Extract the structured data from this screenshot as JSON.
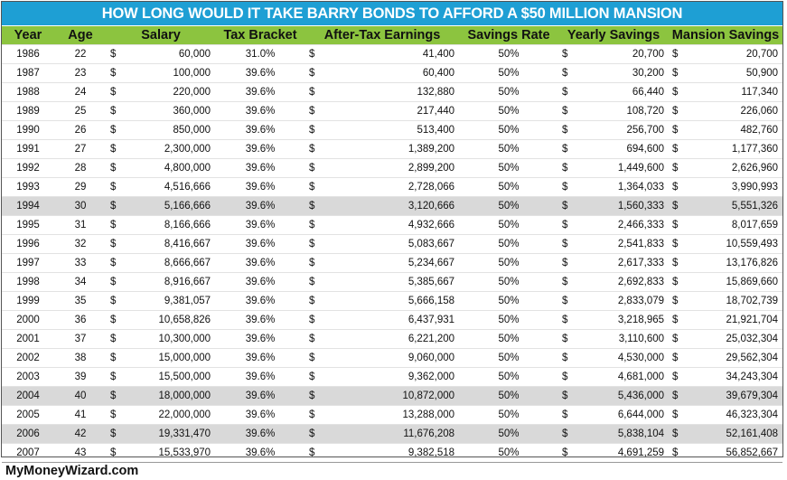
{
  "title": "HOW LONG WOULD IT TAKE BARRY BONDS TO AFFORD A $50 MILLION MANSION",
  "colors": {
    "title_bg": "#1e9fd4",
    "header_bg": "#8cc43f",
    "highlight_row": "#d9d9d9"
  },
  "headers": {
    "year": "Year",
    "age": "Age",
    "salary": "Salary",
    "tax_bracket": "Tax Bracket",
    "after_tax": "After-Tax Earnings",
    "savings_rate": "Savings Rate",
    "yearly_savings": "Yearly Savings",
    "mansion_savings": "Mansion Savings"
  },
  "currency_symbol": "$",
  "rows": [
    {
      "year": "1986",
      "age": "22",
      "salary": "60,000",
      "tax": "31.0%",
      "after_tax": "41,400",
      "rate": "50%",
      "yearly": "20,700",
      "mansion": "20,700",
      "highlight": false
    },
    {
      "year": "1987",
      "age": "23",
      "salary": "100,000",
      "tax": "39.6%",
      "after_tax": "60,400",
      "rate": "50%",
      "yearly": "30,200",
      "mansion": "50,900",
      "highlight": false
    },
    {
      "year": "1988",
      "age": "24",
      "salary": "220,000",
      "tax": "39.6%",
      "after_tax": "132,880",
      "rate": "50%",
      "yearly": "66,440",
      "mansion": "117,340",
      "highlight": false
    },
    {
      "year": "1989",
      "age": "25",
      "salary": "360,000",
      "tax": "39.6%",
      "after_tax": "217,440",
      "rate": "50%",
      "yearly": "108,720",
      "mansion": "226,060",
      "highlight": false
    },
    {
      "year": "1990",
      "age": "26",
      "salary": "850,000",
      "tax": "39.6%",
      "after_tax": "513,400",
      "rate": "50%",
      "yearly": "256,700",
      "mansion": "482,760",
      "highlight": false
    },
    {
      "year": "1991",
      "age": "27",
      "salary": "2,300,000",
      "tax": "39.6%",
      "after_tax": "1,389,200",
      "rate": "50%",
      "yearly": "694,600",
      "mansion": "1,177,360",
      "highlight": false
    },
    {
      "year": "1992",
      "age": "28",
      "salary": "4,800,000",
      "tax": "39.6%",
      "after_tax": "2,899,200",
      "rate": "50%",
      "yearly": "1,449,600",
      "mansion": "2,626,960",
      "highlight": false
    },
    {
      "year": "1993",
      "age": "29",
      "salary": "4,516,666",
      "tax": "39.6%",
      "after_tax": "2,728,066",
      "rate": "50%",
      "yearly": "1,364,033",
      "mansion": "3,990,993",
      "highlight": false
    },
    {
      "year": "1994",
      "age": "30",
      "salary": "5,166,666",
      "tax": "39.6%",
      "after_tax": "3,120,666",
      "rate": "50%",
      "yearly": "1,560,333",
      "mansion": "5,551,326",
      "highlight": true
    },
    {
      "year": "1995",
      "age": "31",
      "salary": "8,166,666",
      "tax": "39.6%",
      "after_tax": "4,932,666",
      "rate": "50%",
      "yearly": "2,466,333",
      "mansion": "8,017,659",
      "highlight": false
    },
    {
      "year": "1996",
      "age": "32",
      "salary": "8,416,667",
      "tax": "39.6%",
      "after_tax": "5,083,667",
      "rate": "50%",
      "yearly": "2,541,833",
      "mansion": "10,559,493",
      "highlight": false
    },
    {
      "year": "1997",
      "age": "33",
      "salary": "8,666,667",
      "tax": "39.6%",
      "after_tax": "5,234,667",
      "rate": "50%",
      "yearly": "2,617,333",
      "mansion": "13,176,826",
      "highlight": false
    },
    {
      "year": "1998",
      "age": "34",
      "salary": "8,916,667",
      "tax": "39.6%",
      "after_tax": "5,385,667",
      "rate": "50%",
      "yearly": "2,692,833",
      "mansion": "15,869,660",
      "highlight": false
    },
    {
      "year": "1999",
      "age": "35",
      "salary": "9,381,057",
      "tax": "39.6%",
      "after_tax": "5,666,158",
      "rate": "50%",
      "yearly": "2,833,079",
      "mansion": "18,702,739",
      "highlight": false
    },
    {
      "year": "2000",
      "age": "36",
      "salary": "10,658,826",
      "tax": "39.6%",
      "after_tax": "6,437,931",
      "rate": "50%",
      "yearly": "3,218,965",
      "mansion": "21,921,704",
      "highlight": false
    },
    {
      "year": "2001",
      "age": "37",
      "salary": "10,300,000",
      "tax": "39.6%",
      "after_tax": "6,221,200",
      "rate": "50%",
      "yearly": "3,110,600",
      "mansion": "25,032,304",
      "highlight": false
    },
    {
      "year": "2002",
      "age": "38",
      "salary": "15,000,000",
      "tax": "39.6%",
      "after_tax": "9,060,000",
      "rate": "50%",
      "yearly": "4,530,000",
      "mansion": "29,562,304",
      "highlight": false
    },
    {
      "year": "2003",
      "age": "39",
      "salary": "15,500,000",
      "tax": "39.6%",
      "after_tax": "9,362,000",
      "rate": "50%",
      "yearly": "4,681,000",
      "mansion": "34,243,304",
      "highlight": false
    },
    {
      "year": "2004",
      "age": "40",
      "salary": "18,000,000",
      "tax": "39.6%",
      "after_tax": "10,872,000",
      "rate": "50%",
      "yearly": "5,436,000",
      "mansion": "39,679,304",
      "highlight": true
    },
    {
      "year": "2005",
      "age": "41",
      "salary": "22,000,000",
      "tax": "39.6%",
      "after_tax": "13,288,000",
      "rate": "50%",
      "yearly": "6,644,000",
      "mansion": "46,323,304",
      "highlight": false
    },
    {
      "year": "2006",
      "age": "42",
      "salary": "19,331,470",
      "tax": "39.6%",
      "after_tax": "11,676,208",
      "rate": "50%",
      "yearly": "5,838,104",
      "mansion": "52,161,408",
      "highlight": true
    },
    {
      "year": "2007",
      "age": "43",
      "salary": "15,533,970",
      "tax": "39.6%",
      "after_tax": "9,382,518",
      "rate": "50%",
      "yearly": "4,691,259",
      "mansion": "56,852,667",
      "highlight": false
    }
  ],
  "footer": "MyMoneyWizard.com"
}
